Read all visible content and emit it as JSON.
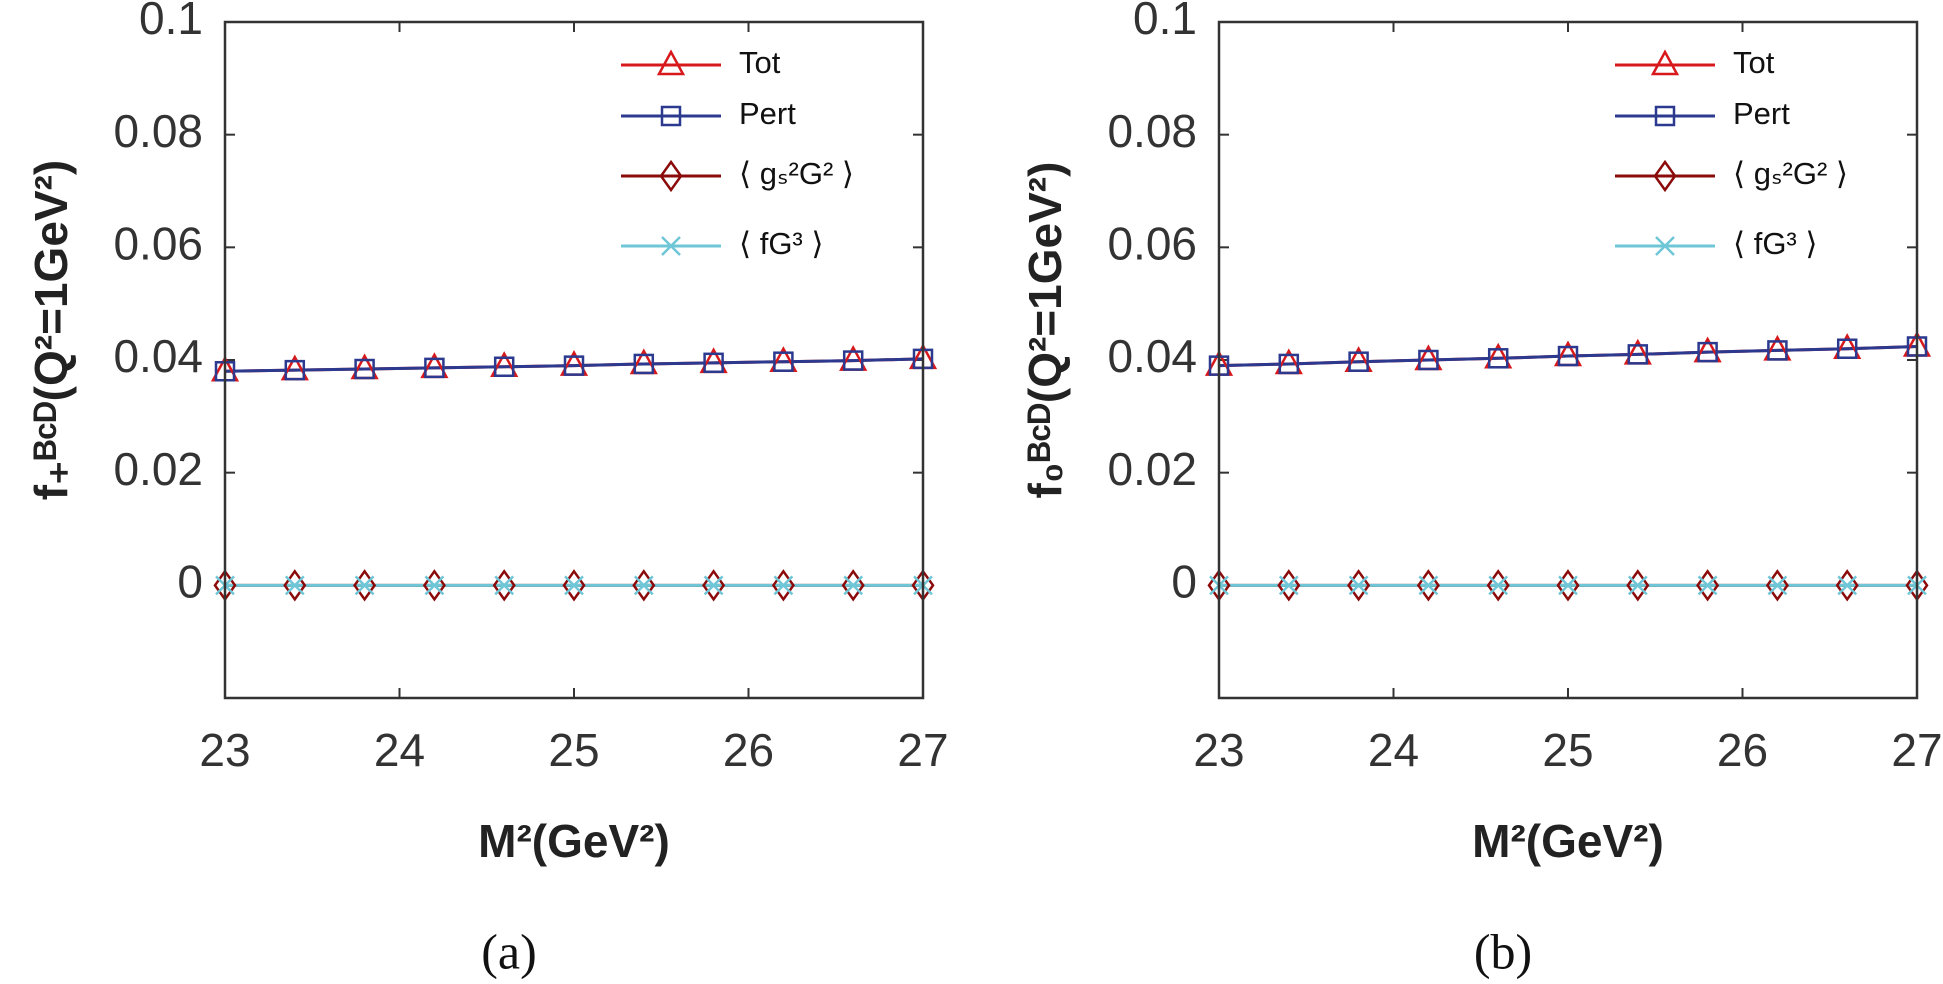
{
  "chart_data": [
    {
      "type": "line",
      "panel_label": "(a)",
      "ylabel": "f₊ᴮᶜᴰ(Q²=1GeV²)",
      "xlabel": "M²(GeV²)",
      "x": [
        23,
        23.4,
        23.8,
        24.2,
        24.6,
        25,
        25.4,
        25.8,
        26.2,
        26.6,
        27
      ],
      "xlim": [
        23,
        27
      ],
      "xticks": [
        23,
        24,
        25,
        26,
        27
      ],
      "ylim": [
        -0.02,
        0.1
      ],
      "yticks": [
        0,
        0.02,
        0.04,
        0.06,
        0.08,
        0.1
      ],
      "legend": "northeast",
      "series": [
        {
          "name": "Tot",
          "color": "#d7191c",
          "marker": "triangle",
          "values": [
            0.038,
            0.0382,
            0.0384,
            0.0386,
            0.0388,
            0.039,
            0.0393,
            0.0395,
            0.0397,
            0.0399,
            0.0402
          ]
        },
        {
          "name": "Pert",
          "color": "#2b3a8f",
          "marker": "square",
          "values": [
            0.038,
            0.0382,
            0.0384,
            0.0386,
            0.0388,
            0.039,
            0.0393,
            0.0395,
            0.0397,
            0.0399,
            0.0402
          ]
        },
        {
          "name": "⟨ gₛ²G² ⟩",
          "color": "#8b0a0a",
          "marker": "diamond",
          "values": [
            0,
            0,
            0,
            0,
            0,
            0,
            0,
            0,
            0,
            0,
            0
          ]
        },
        {
          "name": "⟨ fG³ ⟩",
          "color": "#6ec6d6",
          "marker": "x",
          "values": [
            0,
            0,
            0,
            0,
            0,
            0,
            0,
            0,
            0,
            0,
            0
          ]
        }
      ]
    },
    {
      "type": "line",
      "panel_label": "(b)",
      "ylabel": "f₀ᴮᶜᴰ(Q²=1GeV²)",
      "xlabel": "M²(GeV²)",
      "x": [
        23,
        23.4,
        23.8,
        24.2,
        24.6,
        25,
        25.4,
        25.8,
        26.2,
        26.6,
        27
      ],
      "xlim": [
        23,
        27
      ],
      "xticks": [
        23,
        24,
        25,
        26,
        27
      ],
      "ylim": [
        -0.02,
        0.1
      ],
      "yticks": [
        0,
        0.02,
        0.04,
        0.06,
        0.08,
        0.1
      ],
      "legend": "northeast",
      "series": [
        {
          "name": "Tot",
          "color": "#d7191c",
          "marker": "triangle",
          "values": [
            0.039,
            0.0393,
            0.0397,
            0.04,
            0.0403,
            0.0407,
            0.041,
            0.0414,
            0.0417,
            0.042,
            0.0424
          ]
        },
        {
          "name": "Pert",
          "color": "#2b3a8f",
          "marker": "square",
          "values": [
            0.039,
            0.0393,
            0.0397,
            0.04,
            0.0403,
            0.0407,
            0.041,
            0.0414,
            0.0417,
            0.042,
            0.0424
          ]
        },
        {
          "name": "⟨ gₛ²G² ⟩",
          "color": "#8b0a0a",
          "marker": "diamond",
          "values": [
            0,
            0,
            0,
            0,
            0,
            0,
            0,
            0,
            0,
            0,
            0
          ]
        },
        {
          "name": "⟨ fG³ ⟩",
          "color": "#6ec6d6",
          "marker": "x",
          "values": [
            0,
            0,
            0,
            0,
            0,
            0,
            0,
            0,
            0,
            0,
            0
          ]
        }
      ]
    }
  ]
}
